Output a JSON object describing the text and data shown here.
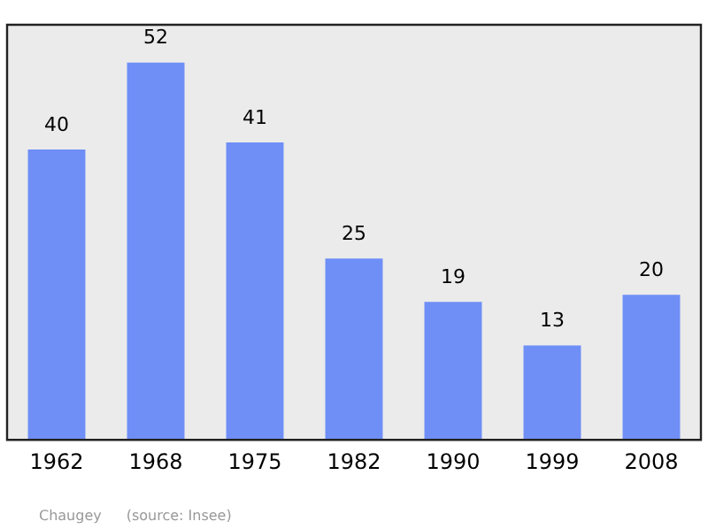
{
  "chart_data": {
    "type": "bar",
    "categories": [
      "1962",
      "1968",
      "1975",
      "1982",
      "1990",
      "1999",
      "2008"
    ],
    "values": [
      40,
      52,
      41,
      25,
      19,
      13,
      20
    ],
    "color": "#6f8ff7",
    "data_labels": true,
    "annotations": [
      "Chaugey",
      "(source: Insee)"
    ]
  }
}
